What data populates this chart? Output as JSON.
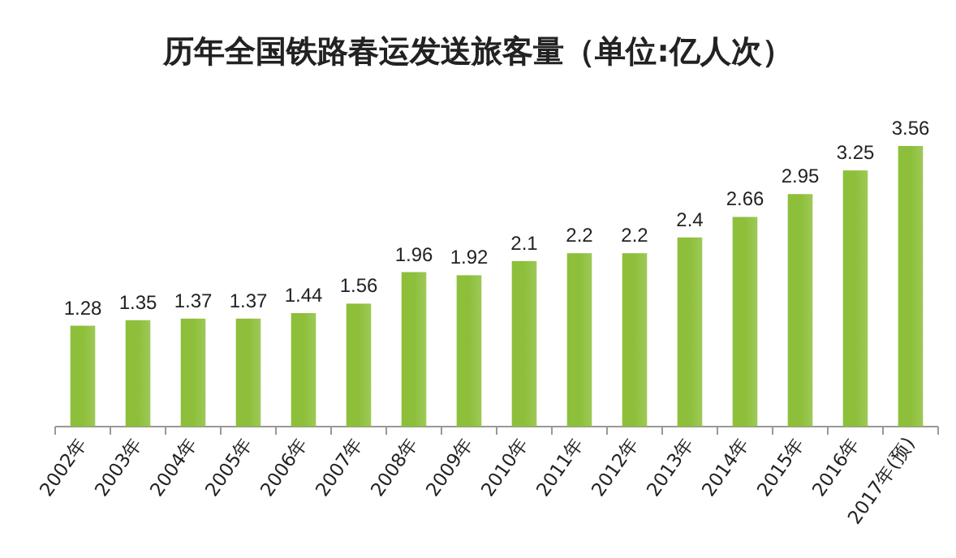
{
  "chart_data": {
    "type": "bar",
    "title": "历年全国铁路春运发送旅客量（单位:亿人次）",
    "categories": [
      "2002年",
      "2003年",
      "2004年",
      "2005年",
      "2006年",
      "2007年",
      "2008年",
      "2009年",
      "2010年",
      "2011年",
      "2012年",
      "2013年",
      "2014年",
      "2015年",
      "2016年",
      "2017年(预)"
    ],
    "values": [
      1.28,
      1.35,
      1.37,
      1.37,
      1.44,
      1.56,
      1.96,
      1.92,
      2.1,
      2.2,
      2.2,
      2.4,
      2.66,
      2.95,
      3.25,
      3.56
    ],
    "color": "#8dbf3a",
    "data_labels": true
  }
}
